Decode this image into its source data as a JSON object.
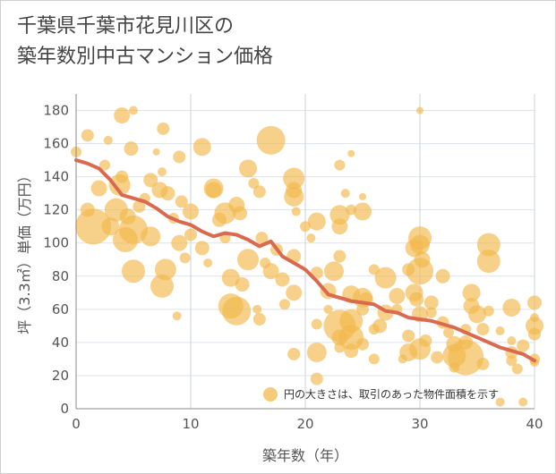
{
  "title_lines": [
    "千葉県千葉市花見川区の",
    "築年数別中古マンション価格"
  ],
  "chart_data": {
    "type": "scatter",
    "title": "千葉県千葉市花見川区の築年数別中古マンション価格",
    "xlabel": "築年数（年）",
    "ylabel": "坪（3.3㎡）単価（万円）",
    "xlim": [
      0,
      40
    ],
    "ylim": [
      0,
      190
    ],
    "xticks": [
      0,
      10,
      20,
      30,
      40
    ],
    "yticks": [
      0,
      20,
      40,
      60,
      80,
      100,
      120,
      140,
      160,
      180
    ],
    "grid": true,
    "legend_note": "円の大きさは、取引のあった物件面積を示す",
    "bubble_color": "#f2b84b",
    "line_color": "#d9694f",
    "trend_line": {
      "x": [
        0,
        1,
        2,
        3,
        4,
        5,
        6,
        7,
        8,
        9,
        10,
        11,
        12,
        13,
        14,
        15,
        16,
        17,
        18,
        19,
        20,
        21,
        22,
        23,
        24,
        25,
        26,
        27,
        28,
        29,
        30,
        31,
        32,
        33,
        34,
        35,
        36,
        37,
        38,
        39,
        40
      ],
      "y": [
        150,
        148,
        145,
        138,
        129,
        127,
        125,
        121,
        116,
        113,
        111,
        107,
        104,
        106,
        105,
        102,
        98,
        101,
        92,
        88,
        84,
        77,
        69,
        67,
        65,
        64,
        63,
        59,
        58,
        55,
        54,
        53,
        51,
        49,
        46,
        43,
        40,
        37,
        35,
        33,
        29
      ]
    },
    "bubbles": [
      {
        "x": 0,
        "y": 155,
        "s": 6
      },
      {
        "x": 1,
        "y": 165,
        "s": 7
      },
      {
        "x": 1.5,
        "y": 110,
        "s": 20
      },
      {
        "x": 1,
        "y": 120,
        "s": 8
      },
      {
        "x": 2,
        "y": 133,
        "s": 9
      },
      {
        "x": 2.5,
        "y": 147,
        "s": 6
      },
      {
        "x": 2.8,
        "y": 162,
        "s": 5
      },
      {
        "x": 3,
        "y": 110,
        "s": 10
      },
      {
        "x": 3.5,
        "y": 120,
        "s": 13
      },
      {
        "x": 3.8,
        "y": 135,
        "s": 12
      },
      {
        "x": 4,
        "y": 177,
        "s": 9
      },
      {
        "x": 4,
        "y": 140,
        "s": 7
      },
      {
        "x": 4.3,
        "y": 102,
        "s": 14
      },
      {
        "x": 4.5,
        "y": 116,
        "s": 9
      },
      {
        "x": 4.8,
        "y": 157,
        "s": 8
      },
      {
        "x": 5,
        "y": 180,
        "s": 5
      },
      {
        "x": 5,
        "y": 83,
        "s": 13
      },
      {
        "x": 5,
        "y": 108,
        "s": 16
      },
      {
        "x": 5.5,
        "y": 122,
        "s": 7
      },
      {
        "x": 6,
        "y": 127,
        "s": 6
      },
      {
        "x": 6.5,
        "y": 138,
        "s": 8
      },
      {
        "x": 6.5,
        "y": 104,
        "s": 11
      },
      {
        "x": 7,
        "y": 155,
        "s": 4
      },
      {
        "x": 7.3,
        "y": 132,
        "s": 9
      },
      {
        "x": 7.5,
        "y": 143,
        "s": 5
      },
      {
        "x": 7.6,
        "y": 169,
        "s": 7
      },
      {
        "x": 7.5,
        "y": 74,
        "s": 13
      },
      {
        "x": 7.8,
        "y": 84,
        "s": 12
      },
      {
        "x": 8,
        "y": 130,
        "s": 8
      },
      {
        "x": 8.5,
        "y": 115,
        "s": 6
      },
      {
        "x": 8.8,
        "y": 56,
        "s": 5
      },
      {
        "x": 9,
        "y": 100,
        "s": 9
      },
      {
        "x": 9,
        "y": 152,
        "s": 7
      },
      {
        "x": 9.2,
        "y": 125,
        "s": 7
      },
      {
        "x": 9.5,
        "y": 91,
        "s": 6
      },
      {
        "x": 10,
        "y": 105,
        "s": 7
      },
      {
        "x": 10,
        "y": 119,
        "s": 9
      },
      {
        "x": 11,
        "y": 158,
        "s": 10
      },
      {
        "x": 11,
        "y": 97,
        "s": 8
      },
      {
        "x": 11.5,
        "y": 88,
        "s": 5
      },
      {
        "x": 12,
        "y": 133,
        "s": 11
      },
      {
        "x": 12,
        "y": 132,
        "s": 9
      },
      {
        "x": 12.5,
        "y": 114,
        "s": 8
      },
      {
        "x": 13,
        "y": 118,
        "s": 12
      },
      {
        "x": 13,
        "y": 103,
        "s": 6
      },
      {
        "x": 13.5,
        "y": 62,
        "s": 14
      },
      {
        "x": 13.5,
        "y": 79,
        "s": 10
      },
      {
        "x": 14,
        "y": 59,
        "s": 16
      },
      {
        "x": 14,
        "y": 123,
        "s": 9
      },
      {
        "x": 14.3,
        "y": 118,
        "s": 8
      },
      {
        "x": 14.5,
        "y": 75,
        "s": 8
      },
      {
        "x": 15,
        "y": 145,
        "s": 10
      },
      {
        "x": 15,
        "y": 90,
        "s": 12
      },
      {
        "x": 15.5,
        "y": 136,
        "s": 6
      },
      {
        "x": 15.8,
        "y": 60,
        "s": 5
      },
      {
        "x": 16,
        "y": 131,
        "s": 7
      },
      {
        "x": 16,
        "y": 54,
        "s": 7
      },
      {
        "x": 16.2,
        "y": 103,
        "s": 7
      },
      {
        "x": 16.5,
        "y": 88,
        "s": 6
      },
      {
        "x": 17,
        "y": 162,
        "s": 16
      },
      {
        "x": 17,
        "y": 83,
        "s": 9
      },
      {
        "x": 17.5,
        "y": 96,
        "s": 7
      },
      {
        "x": 18,
        "y": 78,
        "s": 8
      },
      {
        "x": 18.2,
        "y": 63,
        "s": 6
      },
      {
        "x": 19,
        "y": 139,
        "s": 12
      },
      {
        "x": 19,
        "y": 128,
        "s": 11
      },
      {
        "x": 19,
        "y": 132,
        "s": 9
      },
      {
        "x": 19,
        "y": 92,
        "s": 8
      },
      {
        "x": 19,
        "y": 70,
        "s": 9
      },
      {
        "x": 19,
        "y": 33,
        "s": 7
      },
      {
        "x": 19.2,
        "y": 119,
        "s": 5
      },
      {
        "x": 20,
        "y": 110,
        "s": 6
      },
      {
        "x": 20.5,
        "y": 103,
        "s": 5
      },
      {
        "x": 21,
        "y": 82,
        "s": 7
      },
      {
        "x": 21,
        "y": 51,
        "s": 6
      },
      {
        "x": 21,
        "y": 34,
        "s": 11
      },
      {
        "x": 21,
        "y": 18,
        "s": 7
      },
      {
        "x": 21,
        "y": 113,
        "s": 10
      },
      {
        "x": 22,
        "y": 71,
        "s": 9
      },
      {
        "x": 22,
        "y": 60,
        "s": 5
      },
      {
        "x": 22.5,
        "y": 83,
        "s": 11
      },
      {
        "x": 23,
        "y": 147,
        "s": 6
      },
      {
        "x": 23,
        "y": 117,
        "s": 11
      },
      {
        "x": 23,
        "y": 110,
        "s": 9
      },
      {
        "x": 23,
        "y": 92,
        "s": 7
      },
      {
        "x": 23,
        "y": 50,
        "s": 18
      },
      {
        "x": 23,
        "y": 37,
        "s": 6
      },
      {
        "x": 23,
        "y": 43,
        "s": 9
      },
      {
        "x": 23.5,
        "y": 130,
        "s": 5
      },
      {
        "x": 24,
        "y": 154,
        "s": 4
      },
      {
        "x": 24,
        "y": 69,
        "s": 10
      },
      {
        "x": 24,
        "y": 53,
        "s": 13
      },
      {
        "x": 24,
        "y": 43,
        "s": 14
      },
      {
        "x": 24,
        "y": 35,
        "s": 8
      },
      {
        "x": 24,
        "y": 120,
        "s": 6
      },
      {
        "x": 25,
        "y": 119,
        "s": 10
      },
      {
        "x": 25,
        "y": 128,
        "s": 4
      },
      {
        "x": 25,
        "y": 67,
        "s": 11
      },
      {
        "x": 25,
        "y": 60,
        "s": 7
      },
      {
        "x": 25,
        "y": 39,
        "s": 7
      },
      {
        "x": 25.3,
        "y": 66,
        "s": 8
      },
      {
        "x": 26,
        "y": 84,
        "s": 6
      },
      {
        "x": 26,
        "y": 30,
        "s": 6
      },
      {
        "x": 26,
        "y": 48,
        "s": 6
      },
      {
        "x": 26.5,
        "y": 50,
        "s": 8
      },
      {
        "x": 27,
        "y": 58,
        "s": 9
      },
      {
        "x": 27,
        "y": 79,
        "s": 12
      },
      {
        "x": 28,
        "y": 68,
        "s": 9
      },
      {
        "x": 28,
        "y": 60,
        "s": 6
      },
      {
        "x": 28.5,
        "y": 30,
        "s": 5
      },
      {
        "x": 29,
        "y": 34,
        "s": 10
      },
      {
        "x": 29,
        "y": 84,
        "s": 7
      },
      {
        "x": 29,
        "y": 44,
        "s": 7
      },
      {
        "x": 29.5,
        "y": 97,
        "s": 10
      },
      {
        "x": 29.5,
        "y": 70,
        "s": 10
      },
      {
        "x": 29.7,
        "y": 66,
        "s": 8
      },
      {
        "x": 30,
        "y": 57,
        "s": 9
      },
      {
        "x": 30,
        "y": 103,
        "s": 13
      },
      {
        "x": 30,
        "y": 99,
        "s": 11
      },
      {
        "x": 30,
        "y": 36,
        "s": 12
      },
      {
        "x": 30,
        "y": 83,
        "s": 15
      },
      {
        "x": 30,
        "y": 180,
        "s": 4
      },
      {
        "x": 30.2,
        "y": 90,
        "s": 9
      },
      {
        "x": 30.5,
        "y": 41,
        "s": 7
      },
      {
        "x": 31,
        "y": 58,
        "s": 6
      },
      {
        "x": 31,
        "y": 64,
        "s": 8
      },
      {
        "x": 31.5,
        "y": 31,
        "s": 7
      },
      {
        "x": 32,
        "y": 80,
        "s": 8
      },
      {
        "x": 32,
        "y": 52,
        "s": 7
      },
      {
        "x": 32.5,
        "y": 46,
        "s": 6
      },
      {
        "x": 33,
        "y": 32,
        "s": 13
      },
      {
        "x": 33,
        "y": 39,
        "s": 9
      },
      {
        "x": 33,
        "y": 25,
        "s": 6
      },
      {
        "x": 34,
        "y": 40,
        "s": 8
      },
      {
        "x": 34,
        "y": 31,
        "s": 20
      },
      {
        "x": 34,
        "y": 48,
        "s": 6
      },
      {
        "x": 34.5,
        "y": 62,
        "s": 9
      },
      {
        "x": 34.5,
        "y": 70,
        "s": 10
      },
      {
        "x": 35,
        "y": 57,
        "s": 10
      },
      {
        "x": 35.5,
        "y": 48,
        "s": 7
      },
      {
        "x": 35.5,
        "y": 27,
        "s": 7
      },
      {
        "x": 36,
        "y": 99,
        "s": 13
      },
      {
        "x": 36,
        "y": 89,
        "s": 13
      },
      {
        "x": 36,
        "y": 59,
        "s": 6
      },
      {
        "x": 37,
        "y": 4,
        "s": 5
      },
      {
        "x": 37,
        "y": 47,
        "s": 5
      },
      {
        "x": 38,
        "y": 61,
        "s": 10
      },
      {
        "x": 38,
        "y": 41,
        "s": 5
      },
      {
        "x": 38,
        "y": 34,
        "s": 7
      },
      {
        "x": 38,
        "y": 29,
        "s": 6
      },
      {
        "x": 38.5,
        "y": 24,
        "s": 6
      },
      {
        "x": 39,
        "y": 4,
        "s": 5
      },
      {
        "x": 39,
        "y": 38,
        "s": 7
      },
      {
        "x": 40,
        "y": 64,
        "s": 8
      },
      {
        "x": 40,
        "y": 50,
        "s": 10
      },
      {
        "x": 40,
        "y": 55,
        "s": 5
      },
      {
        "x": 40,
        "y": 45,
        "s": 7
      },
      {
        "x": 40,
        "y": 30,
        "s": 6
      },
      {
        "x": 40,
        "y": 28,
        "s": 5
      }
    ]
  }
}
